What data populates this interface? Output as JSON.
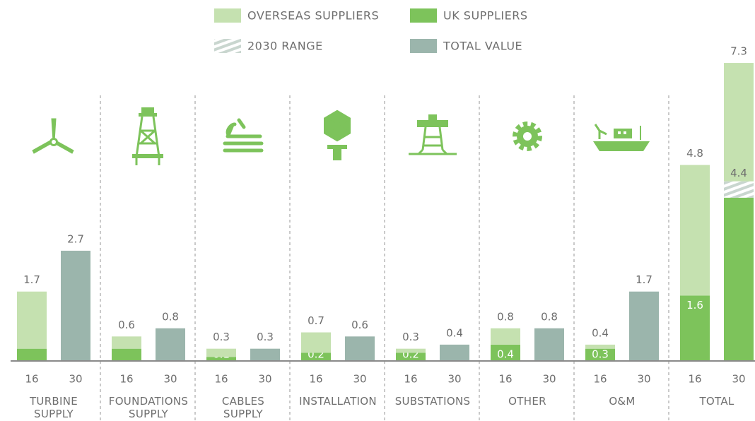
{
  "chart_data": {
    "type": "bar",
    "categories": [
      "TURBINE SUPPLY",
      "FOUNDATIONS SUPPLY",
      "CABLES SUPPLY",
      "INSTALLATION",
      "SUBSTATIONS",
      "OTHER",
      "O&M",
      "TOTAL"
    ],
    "bar_labels": [
      "16",
      "30"
    ],
    "series": [
      {
        "name": "UK SUPPLIERS",
        "color": "#7dc35b",
        "values": [
          [
            0.3,
            0.3,
            0.1,
            0.2,
            0.2,
            0.4,
            0.3,
            1.6
          ],
          [
            null,
            null,
            null,
            null,
            null,
            null,
            null,
            4.0
          ]
        ],
        "value_labels": [
          [
            null,
            null,
            "0.1",
            "0.2",
            "0.2",
            "0.4",
            "0.3",
            "1.6"
          ],
          [
            null,
            null,
            null,
            null,
            null,
            null,
            null,
            null
          ]
        ]
      },
      {
        "name": "2030 RANGE",
        "color": "#c5e1b0",
        "values": [
          [
            null,
            null,
            null,
            null,
            null,
            null,
            null,
            null
          ],
          [
            null,
            null,
            null,
            null,
            null,
            null,
            null,
            0.4
          ]
        ]
      },
      {
        "name": "OVERSEAS SUPPLIERS",
        "color": "#c5e1b0",
        "values": [
          [
            1.4,
            0.3,
            0.2,
            0.5,
            0.1,
            0.4,
            0.1,
            3.2
          ],
          [
            null,
            null,
            null,
            null,
            null,
            null,
            null,
            2.9
          ]
        ]
      },
      {
        "name": "TOTAL VALUE",
        "color": "#9bb5ac",
        "values": [
          [
            null,
            null,
            null,
            null,
            null,
            null,
            null,
            null
          ],
          [
            2.7,
            0.8,
            0.3,
            0.6,
            0.4,
            0.8,
            1.7,
            null
          ]
        ]
      }
    ],
    "totals": [
      [
        1.7,
        0.6,
        0.3,
        0.7,
        0.3,
        0.8,
        0.4,
        4.8
      ],
      [
        2.7,
        0.8,
        0.3,
        0.6,
        0.4,
        0.8,
        1.7,
        7.3
      ]
    ],
    "subtotal_labels": [
      [
        null,
        null,
        null,
        null,
        null,
        null,
        null,
        null
      ],
      [
        null,
        null,
        null,
        null,
        null,
        null,
        null,
        4.4
      ]
    ]
  }
}
